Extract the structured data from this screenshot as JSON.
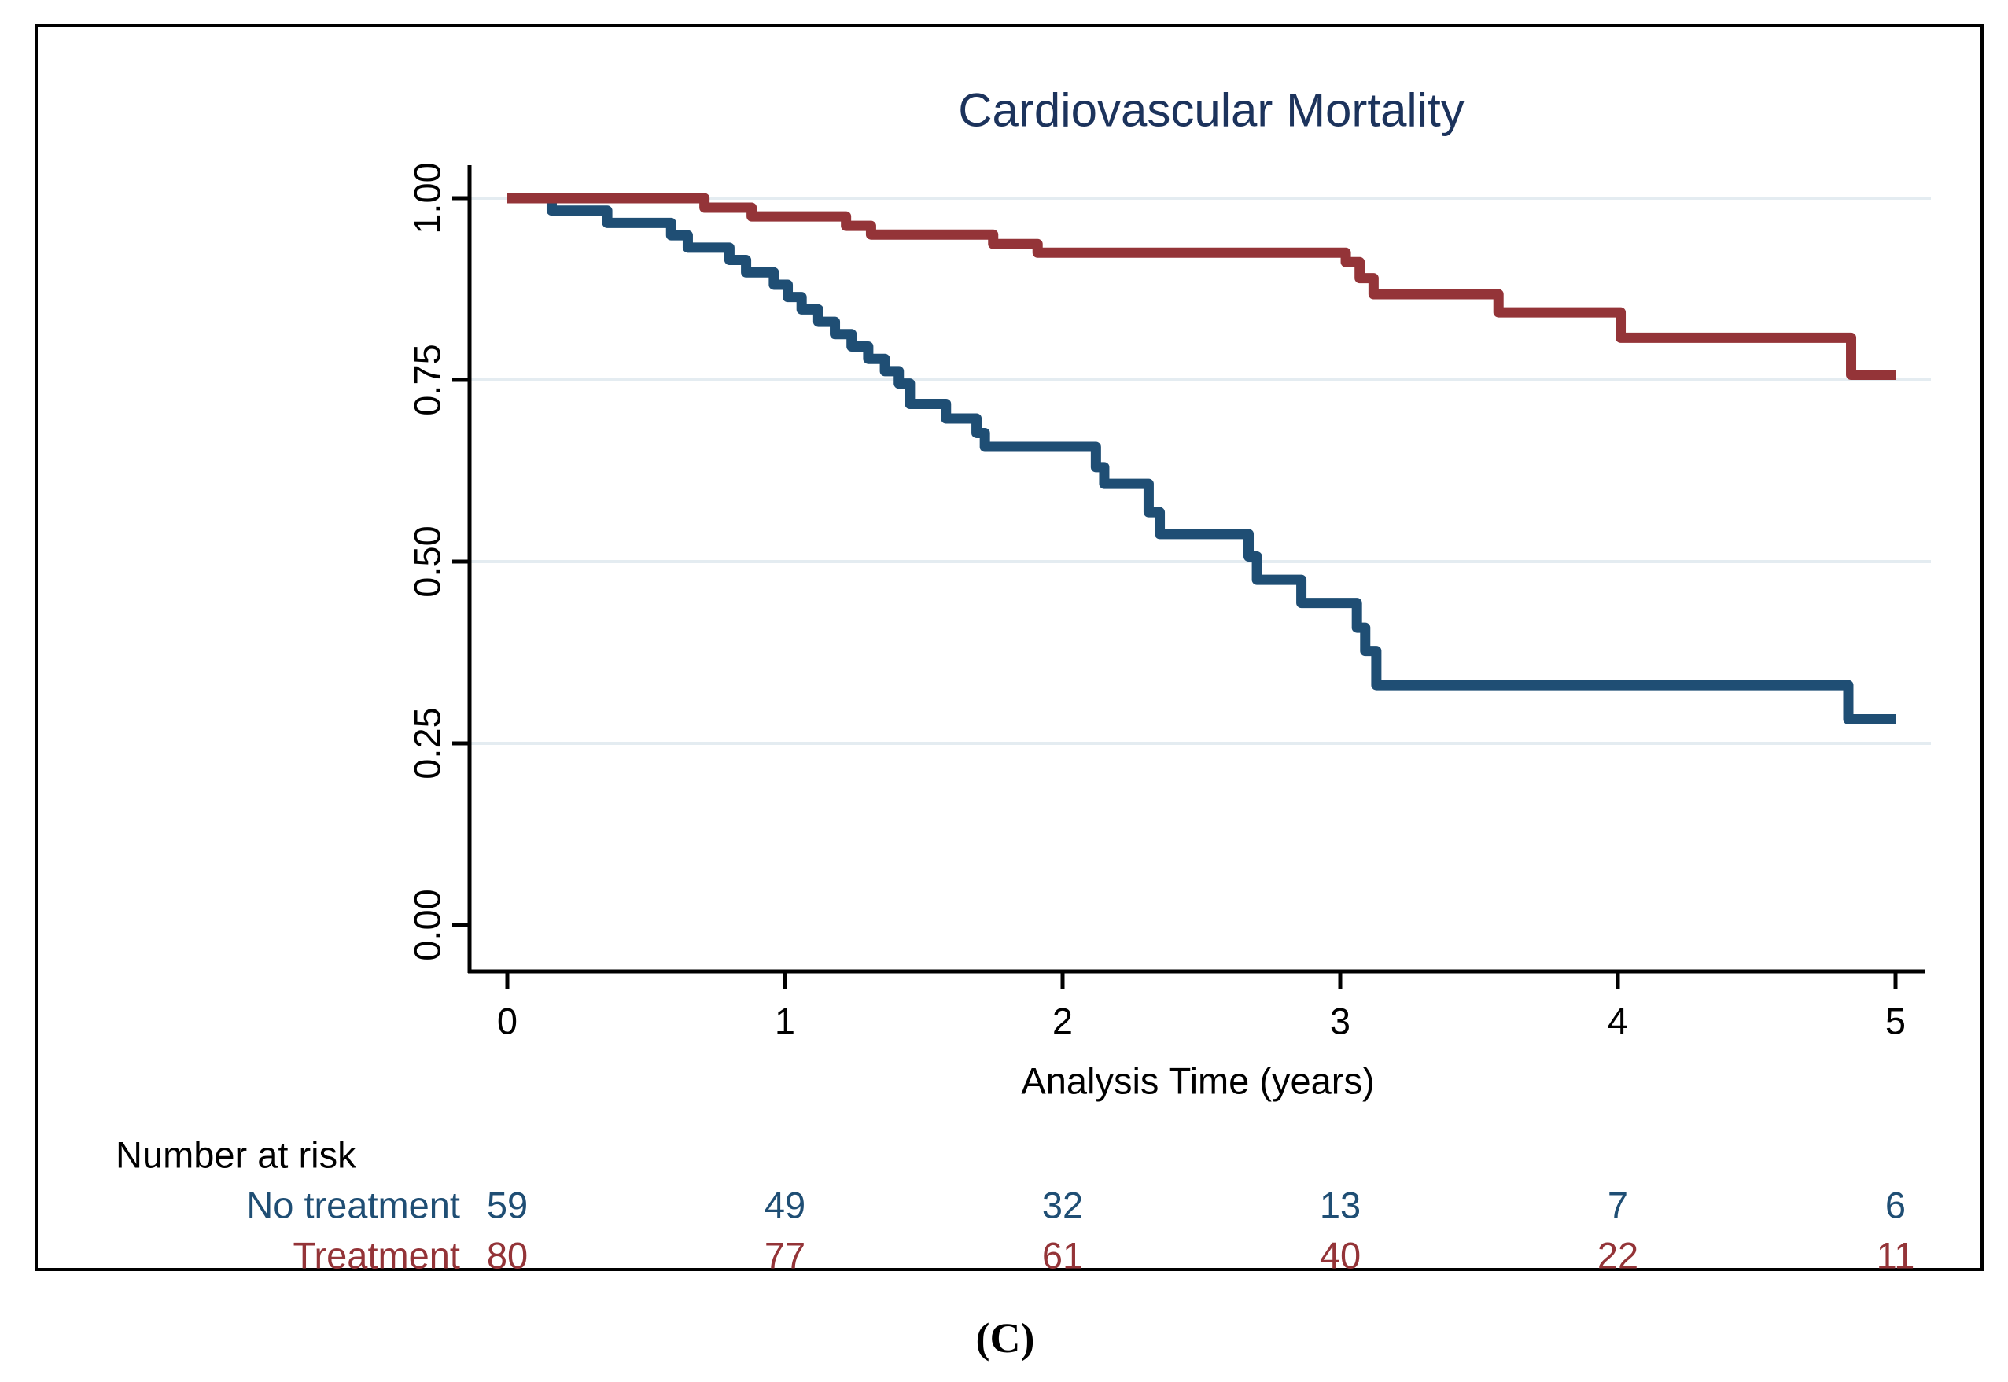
{
  "figure": {
    "caption": "(C)"
  },
  "colors": {
    "no_treatment": "#1f4e74",
    "treatment": "#943438",
    "title": "#1c335c",
    "grid": "#e4ecf1",
    "axis": "#000000",
    "background": "#ffffff"
  },
  "chart_data": {
    "type": "line",
    "subtype": "kaplan-meier-step",
    "title": "Cardiovascular Mortality",
    "xlabel": "Analysis Time (years)",
    "ylabel": "",
    "xlim": [
      0,
      5
    ],
    "ylim": [
      0,
      1
    ],
    "grid": "horizontal",
    "legend_position": "none",
    "x_ticks": [
      {
        "label": "0",
        "value": 0
      },
      {
        "label": "1",
        "value": 1
      },
      {
        "label": "2",
        "value": 2
      },
      {
        "label": "3",
        "value": 3
      },
      {
        "label": "4",
        "value": 4
      },
      {
        "label": "5",
        "value": 5
      }
    ],
    "y_ticks": [
      {
        "label": "1.00",
        "value": 1.0,
        "grid": true
      },
      {
        "label": "0.75",
        "value": 0.75,
        "grid": true
      },
      {
        "label": "0.50",
        "value": 0.5,
        "grid": true
      },
      {
        "label": "0.25",
        "value": 0.25,
        "grid": true
      },
      {
        "label": "0.00",
        "value": 0.0,
        "grid": false
      }
    ],
    "series": [
      {
        "name": "No treatment",
        "color": "#1f4e74",
        "steps": [
          [
            0.0,
            1.0
          ],
          [
            0.16,
            0.983
          ],
          [
            0.36,
            0.966
          ],
          [
            0.59,
            0.949
          ],
          [
            0.65,
            0.932
          ],
          [
            0.8,
            0.915
          ],
          [
            0.86,
            0.898
          ],
          [
            0.96,
            0.881
          ],
          [
            1.01,
            0.864
          ],
          [
            1.06,
            0.847
          ],
          [
            1.12,
            0.83
          ],
          [
            1.18,
            0.813
          ],
          [
            1.24,
            0.796
          ],
          [
            1.3,
            0.779
          ],
          [
            1.36,
            0.762
          ],
          [
            1.41,
            0.745
          ],
          [
            1.45,
            0.717
          ],
          [
            1.58,
            0.697
          ],
          [
            1.69,
            0.677
          ],
          [
            1.72,
            0.658
          ],
          [
            2.12,
            0.63
          ],
          [
            2.15,
            0.607
          ],
          [
            2.31,
            0.568
          ],
          [
            2.35,
            0.538
          ],
          [
            2.67,
            0.507
          ],
          [
            2.7,
            0.475
          ],
          [
            2.86,
            0.443
          ],
          [
            3.06,
            0.409
          ],
          [
            3.09,
            0.377
          ],
          [
            3.13,
            0.33
          ],
          [
            4.83,
            0.283
          ],
          [
            5.0,
            0.283
          ]
        ]
      },
      {
        "name": "Treatment",
        "color": "#943438",
        "steps": [
          [
            0.0,
            1.0
          ],
          [
            0.71,
            0.987
          ],
          [
            0.88,
            0.975
          ],
          [
            1.22,
            0.962
          ],
          [
            1.31,
            0.95
          ],
          [
            1.75,
            0.937
          ],
          [
            1.91,
            0.925
          ],
          [
            3.02,
            0.912
          ],
          [
            3.07,
            0.89
          ],
          [
            3.12,
            0.868
          ],
          [
            3.57,
            0.843
          ],
          [
            4.01,
            0.808
          ],
          [
            4.84,
            0.757
          ],
          [
            5.0,
            0.757
          ]
        ]
      }
    ],
    "risk_table": {
      "title": "Number at risk",
      "times": [
        0,
        1,
        2,
        3,
        4,
        5
      ],
      "rows": [
        {
          "label": "No treatment",
          "color": "#1f4e74",
          "counts": [
            59,
            49,
            32,
            13,
            7,
            6
          ]
        },
        {
          "label": "Treatment",
          "color": "#943438",
          "counts": [
            80,
            77,
            61,
            40,
            22,
            11
          ]
        }
      ]
    }
  }
}
